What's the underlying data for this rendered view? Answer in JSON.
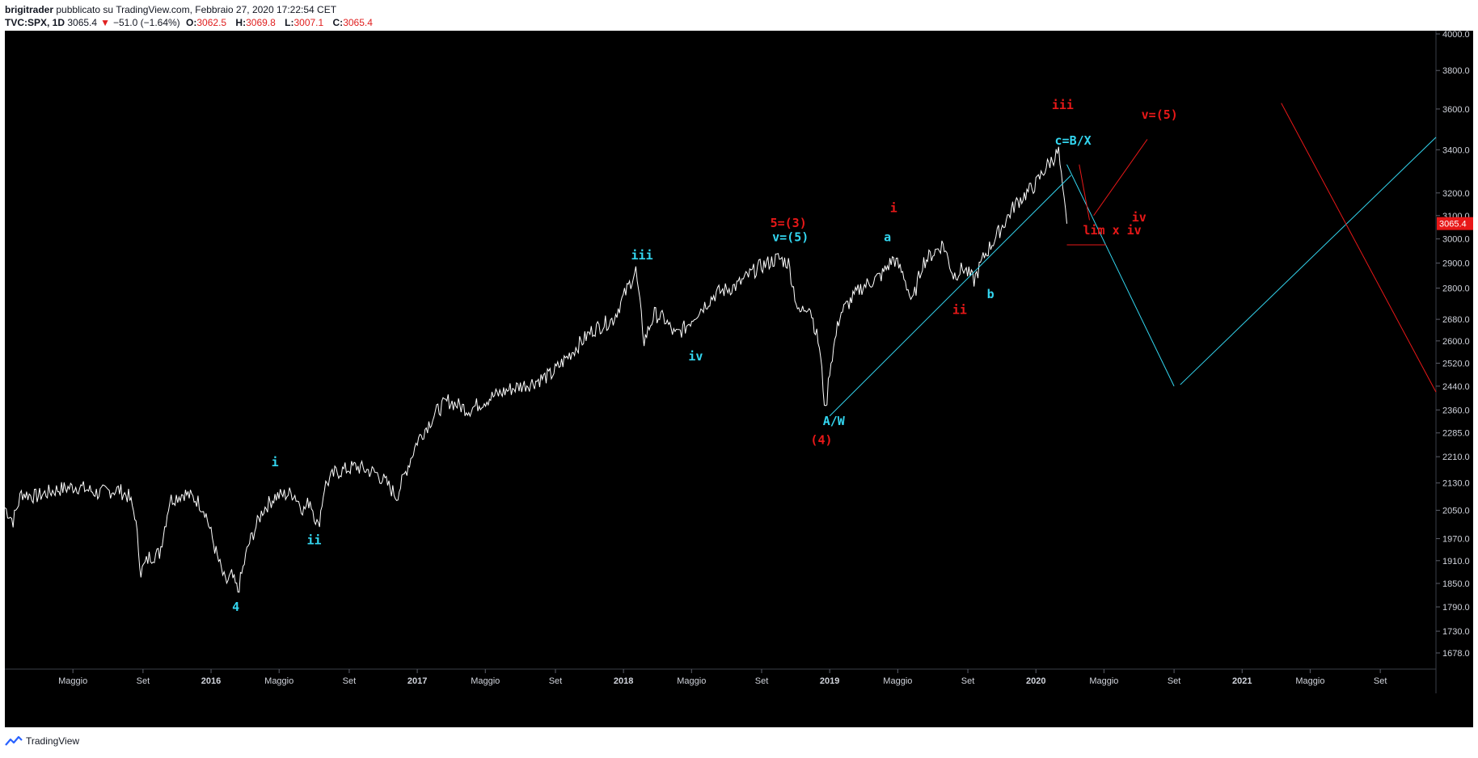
{
  "header": {
    "user": "brigitrader",
    "published": "pubblicato su TradingView.com, Febbraio 27, 2020 17:22:54 CET",
    "symbol": "TVC:SPX, 1D",
    "last": "3065.4",
    "change": "−51.0 (−1.64%)",
    "o_label": "O:",
    "o": "3062.5",
    "h_label": "H:",
    "h": "3069.8",
    "l_label": "L:",
    "l": "3007.1",
    "c_label": "C:",
    "c": "3065.4"
  },
  "footer": {
    "brand": "TradingView",
    "logo_icon": "tradingview-logo-icon"
  },
  "colors": {
    "background": "#000000",
    "price": "#ffffff",
    "cyan": "#33d6f0",
    "red": "#e81818",
    "axis_text": "#d1d4dc",
    "price_tag": "#e81818"
  },
  "chart_data": {
    "type": "line",
    "symbol": "TVC:SPX",
    "interval": "1D",
    "scale": "log",
    "ylim": [
      1678,
      4000
    ],
    "y_ticks": [
      4000,
      3800,
      3600,
      3400,
      3200,
      3100,
      3000,
      2900,
      2800,
      2680,
      2600,
      2520,
      2440,
      2360,
      2285,
      2210,
      2130,
      2050,
      1970,
      1910,
      1850,
      1790,
      1730,
      1678
    ],
    "x_ticks": [
      {
        "t": 2015.33,
        "label": "Maggio"
      },
      {
        "t": 2015.67,
        "label": "Set"
      },
      {
        "t": 2016.0,
        "label": "2016"
      },
      {
        "t": 2016.33,
        "label": "Maggio"
      },
      {
        "t": 2016.67,
        "label": "Set"
      },
      {
        "t": 2017.0,
        "label": "2017"
      },
      {
        "t": 2017.33,
        "label": "Maggio"
      },
      {
        "t": 2017.67,
        "label": "Set"
      },
      {
        "t": 2018.0,
        "label": "2018"
      },
      {
        "t": 2018.33,
        "label": "Maggio"
      },
      {
        "t": 2018.67,
        "label": "Set"
      },
      {
        "t": 2019.0,
        "label": "2019"
      },
      {
        "t": 2019.33,
        "label": "Maggio"
      },
      {
        "t": 2019.67,
        "label": "Set"
      },
      {
        "t": 2020.0,
        "label": "2020"
      },
      {
        "t": 2020.33,
        "label": "Maggio"
      },
      {
        "t": 2020.67,
        "label": "Set"
      },
      {
        "t": 2021.0,
        "label": "2021"
      },
      {
        "t": 2021.33,
        "label": "Maggio"
      },
      {
        "t": 2021.67,
        "label": "Set"
      }
    ],
    "xlim": [
      2015.0,
      2021.94
    ],
    "last_price": 3065.4,
    "series": [
      {
        "values_t": [
          2015.0,
          2015.04,
          2015.08,
          2015.15,
          2015.25,
          2015.35,
          2015.45,
          2015.55,
          2015.6,
          2015.63,
          2015.66,
          2015.7,
          2015.75,
          2015.8,
          2015.87,
          2015.93,
          2015.97,
          2016.03,
          2016.07,
          2016.1,
          2016.13,
          2016.18,
          2016.25,
          2016.31,
          2016.4,
          2016.45,
          2016.48,
          2016.52,
          2016.55,
          2016.6,
          2016.7,
          2016.8,
          2016.85,
          2016.9,
          2017.0,
          2017.1,
          2017.15,
          2017.25,
          2017.35,
          2017.45,
          2017.55,
          2017.65,
          2017.75,
          2017.85,
          2017.95,
          2018.06,
          2018.1,
          2018.15,
          2018.2,
          2018.25,
          2018.3,
          2018.35,
          2018.45,
          2018.55,
          2018.65,
          2018.75,
          2018.8,
          2018.85,
          2018.9,
          2018.95,
          2018.98,
          2019.0,
          2019.05,
          2019.15,
          2019.25,
          2019.31,
          2019.36,
          2019.4,
          2019.45,
          2019.55,
          2019.6,
          2019.65,
          2019.7,
          2019.75,
          2019.8,
          2019.9,
          2020.0,
          2020.05,
          2020.11,
          2020.13,
          2020.15
        ],
        "values_y": [
          2058,
          2020,
          2100,
          2090,
          2110,
          2120,
          2100,
          2110,
          2090,
          2040,
          1880,
          1920,
          1930,
          2080,
          2100,
          2080,
          2050,
          1920,
          1850,
          1870,
          1830,
          1950,
          2050,
          2090,
          2100,
          2050,
          2080,
          2000,
          2120,
          2160,
          2180,
          2160,
          2130,
          2090,
          2260,
          2360,
          2390,
          2360,
          2400,
          2430,
          2450,
          2480,
          2560,
          2640,
          2680,
          2870,
          2600,
          2700,
          2680,
          2620,
          2650,
          2700,
          2780,
          2810,
          2880,
          2920,
          2900,
          2700,
          2740,
          2580,
          2350,
          2500,
          2700,
          2800,
          2850,
          2920,
          2850,
          2740,
          2900,
          2980,
          2850,
          2880,
          2830,
          2930,
          3000,
          3150,
          3240,
          3320,
          3390,
          3200,
          3065
        ]
      }
    ],
    "annotations": [
      {
        "text": "iii",
        "color": "cyan",
        "t": 2018.09,
        "y": 2915
      },
      {
        "text": "iv",
        "color": "cyan",
        "t": 2018.35,
        "y": 2530
      },
      {
        "text": "i",
        "color": "cyan",
        "t": 2016.31,
        "y": 2180
      },
      {
        "text": "ii",
        "color": "cyan",
        "t": 2016.5,
        "y": 1955
      },
      {
        "text": "4",
        "color": "cyan",
        "t": 2016.12,
        "y": 1780
      },
      {
        "text": "5=(3)",
        "color": "red",
        "t": 2018.8,
        "y": 3050
      },
      {
        "text": "v=(5)",
        "color": "cyan",
        "t": 2018.81,
        "y": 2990
      },
      {
        "text": "A/W",
        "color": "cyan",
        "t": 2019.02,
        "y": 2310
      },
      {
        "text": "(4)",
        "color": "red",
        "t": 2018.96,
        "y": 2250
      },
      {
        "text": "i",
        "color": "red",
        "t": 2019.31,
        "y": 3115
      },
      {
        "text": "a",
        "color": "cyan",
        "t": 2019.28,
        "y": 2990
      },
      {
        "text": "ii",
        "color": "red",
        "t": 2019.63,
        "y": 2700
      },
      {
        "text": "b",
        "color": "cyan",
        "t": 2019.78,
        "y": 2760
      },
      {
        "text": "iii",
        "color": "red",
        "t": 2020.13,
        "y": 3600
      },
      {
        "text": "c=B/X",
        "color": "cyan",
        "t": 2020.18,
        "y": 3425
      },
      {
        "text": "v=(5)",
        "color": "red",
        "t": 2020.6,
        "y": 3550
      },
      {
        "text": "iv",
        "color": "red",
        "t": 2020.5,
        "y": 3075
      },
      {
        "text": "lim x iv",
        "color": "red",
        "t": 2020.37,
        "y": 3020
      }
    ]
  }
}
